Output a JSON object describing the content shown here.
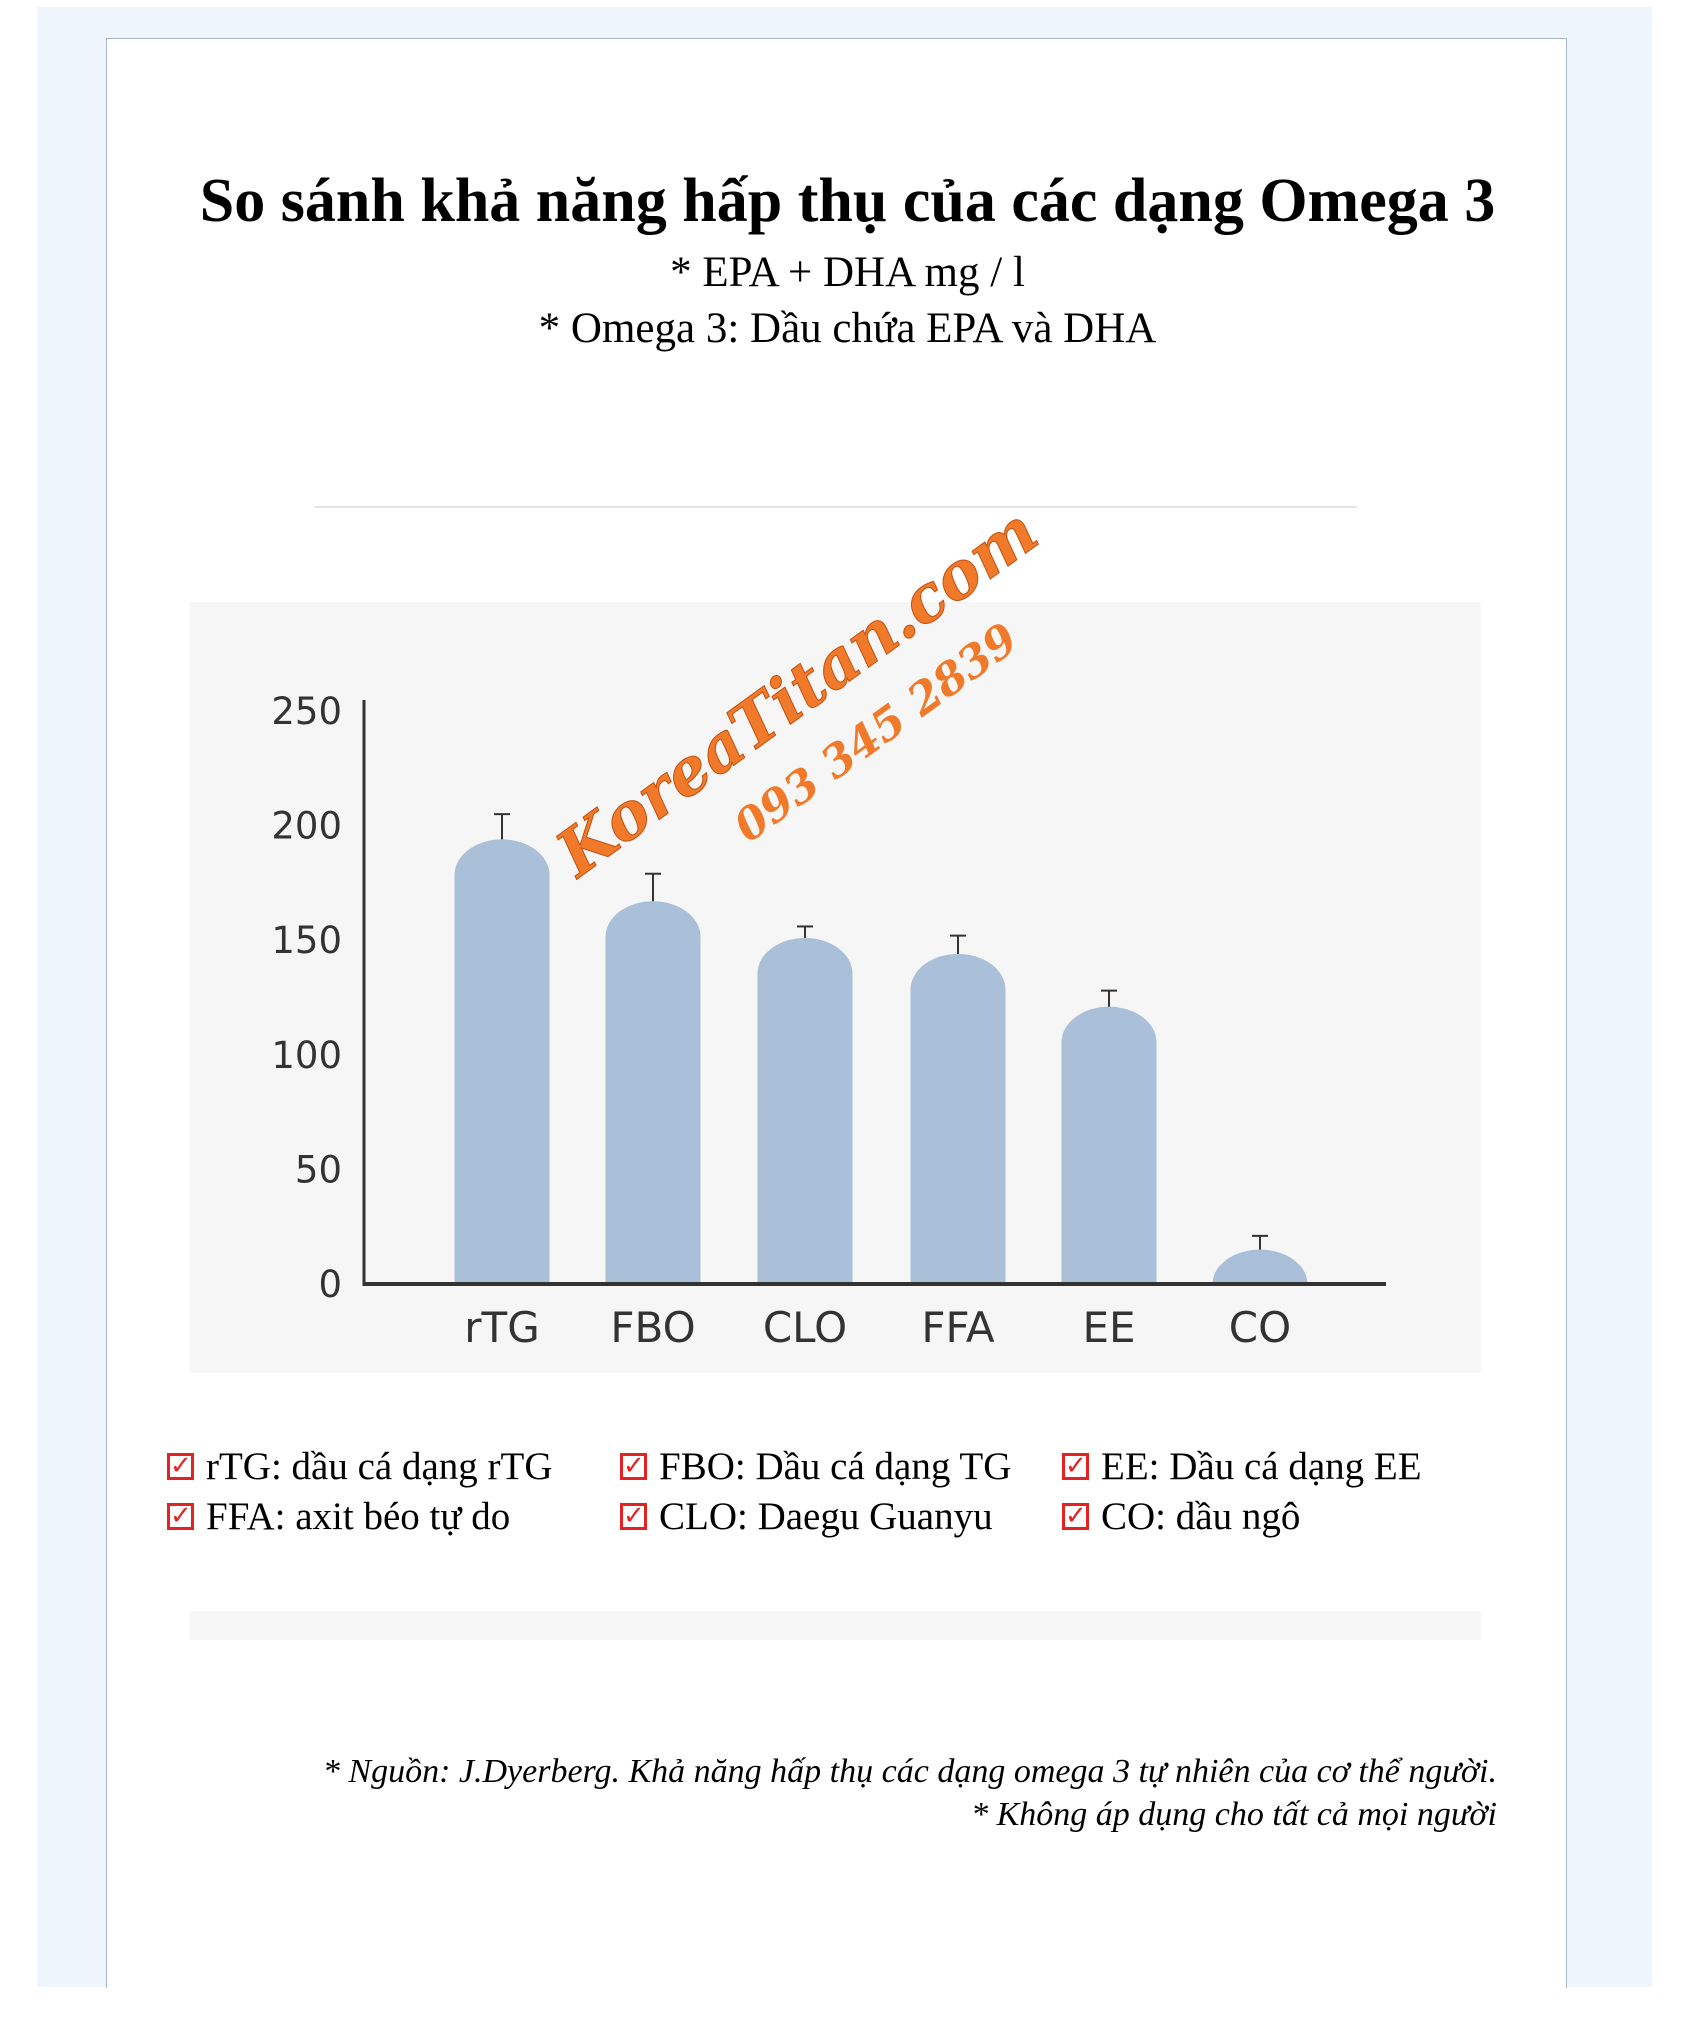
{
  "header": {
    "title": "So sánh khả năng hấp thụ của các dạng Omega 3",
    "subtitle1": "* EPA + DHA mg / l",
    "subtitle2": "* Omega 3: Dầu chứa EPA và DHA"
  },
  "watermark": {
    "line1": "KoreaTitan.com",
    "line2": "093 345 2839",
    "color": "#f07a2a"
  },
  "chart_data": {
    "type": "bar",
    "title": "",
    "xlabel": "",
    "ylabel": "EPA + DHA mg / l",
    "categories": [
      "rTG",
      "FBO",
      "CLO",
      "FFA",
      "EE",
      "CO"
    ],
    "values": [
      194,
      167,
      151,
      144,
      121,
      15
    ],
    "error_upper": [
      205,
      179,
      156,
      152,
      128,
      21
    ],
    "ylim": [
      0,
      250
    ],
    "yticks": [
      0,
      50,
      100,
      150,
      200,
      250
    ],
    "grid": false,
    "bar_color": "#a9c0d8"
  },
  "legend": [
    {
      "label": "rTG: dầu cá dạng rTG"
    },
    {
      "label": "FBO: Dầu cá dạng TG"
    },
    {
      "label": "EE: Dầu cá dạng EE"
    },
    {
      "label": "FFA: axit béo tự do"
    },
    {
      "label": "CLO: Daegu Guanyu"
    },
    {
      "label": "CO: dầu ngô"
    }
  ],
  "legend_icon": "checked-box-icon",
  "footnote": {
    "line1": "* Nguồn: J.Dyerberg. Khả năng hấp thụ các dạng omega 3 tự nhiên của cơ thể người.",
    "line2": "* Không áp dụng cho tất cả mọi người"
  }
}
